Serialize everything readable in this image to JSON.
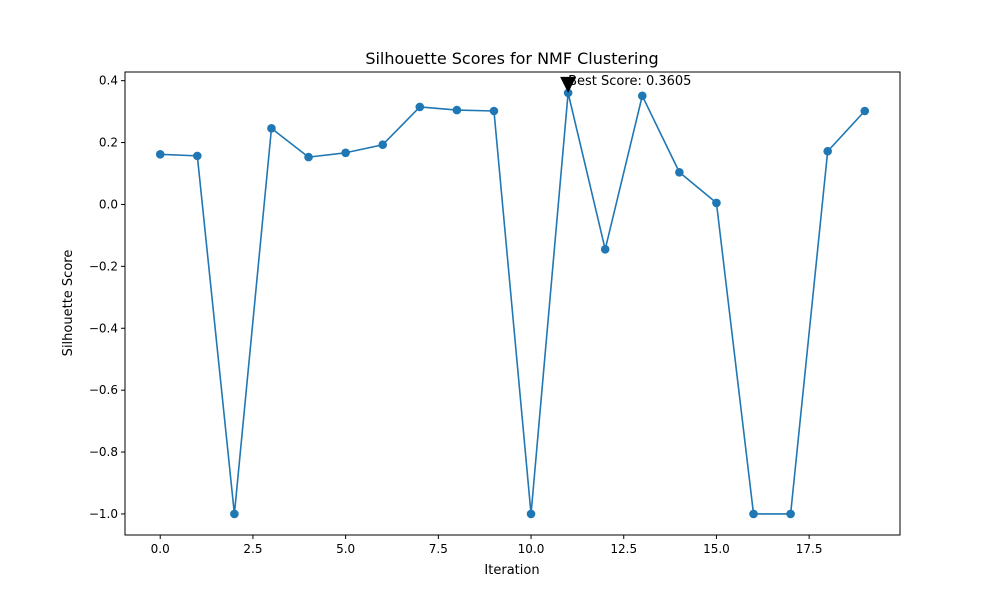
{
  "chart_data": {
    "type": "line",
    "title": "Silhouette Scores for NMF Clustering",
    "xlabel": "Iteration",
    "ylabel": "Silhouette Score",
    "xlim": [
      -0.95,
      19.95
    ],
    "ylim": [
      -1.068,
      0.428
    ],
    "xticks": [
      0.0,
      2.5,
      5.0,
      7.5,
      10.0,
      12.5,
      15.0,
      17.5
    ],
    "xtick_labels": [
      "0.0",
      "2.5",
      "5.0",
      "7.5",
      "10.0",
      "12.5",
      "15.0",
      "17.5"
    ],
    "yticks": [
      0.4,
      0.2,
      0.0,
      -0.2,
      -0.4,
      -0.6,
      -0.8,
      -1.0
    ],
    "ytick_labels": [
      "0.4",
      "0.2",
      "0.0",
      "−0.2",
      "−0.4",
      "−0.6",
      "−0.8",
      "−1.0"
    ],
    "grid": false,
    "legend": false,
    "series": [
      {
        "color": "#1f77b4",
        "marker": "circle",
        "x": [
          0,
          1,
          2,
          3,
          4,
          5,
          6,
          7,
          8,
          9,
          10,
          11,
          12,
          13,
          14,
          15,
          16,
          17,
          18,
          19
        ],
        "y": [
          0.162,
          0.157,
          -1.0,
          0.246,
          0.153,
          0.167,
          0.193,
          0.315,
          0.305,
          0.302,
          -1.0,
          0.3605,
          -0.145,
          0.351,
          0.104,
          0.005,
          -1.0,
          -1.0,
          0.172,
          0.302
        ]
      }
    ],
    "annotations": [
      {
        "text": "Best Score: 0.3605",
        "x": 11,
        "y": 0.3605,
        "arrow": "down-triangle",
        "color": "#000000"
      }
    ]
  }
}
